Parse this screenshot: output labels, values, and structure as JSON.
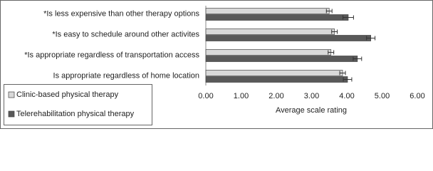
{
  "chart_data": {
    "type": "hbar",
    "categories": [
      "*Is less expensive than other therapy options",
      "*Is easy to schedule around other activites",
      "*Is appropriate regardless of transportation access",
      "Is appropriate regardless of home location"
    ],
    "series": [
      {
        "name": "Clinic-based physical therapy",
        "color": "#d9d9d9",
        "values": [
          3.5,
          3.65,
          3.55,
          3.88
        ],
        "errors": [
          0.08,
          0.08,
          0.08,
          0.08
        ]
      },
      {
        "name": "Telerehabilitation physical therapy",
        "color": "#595959",
        "values": [
          4.04,
          4.68,
          4.3,
          4.02
        ],
        "errors": [
          0.15,
          0.12,
          0.12,
          0.12
        ]
      }
    ],
    "xlabel": "Average scale rating",
    "xlim": [
      0,
      6
    ],
    "xticks": [
      {
        "value": 0,
        "label": "0.00"
      },
      {
        "value": 1,
        "label": "1.00"
      },
      {
        "value": 2,
        "label": "2.00"
      },
      {
        "value": 3,
        "label": "3.00"
      },
      {
        "value": 4,
        "label": "4.00"
      },
      {
        "value": 5,
        "label": "5.00"
      },
      {
        "value": 6,
        "label": "6.00"
      }
    ],
    "grid": false,
    "legend": "bottom-left"
  }
}
